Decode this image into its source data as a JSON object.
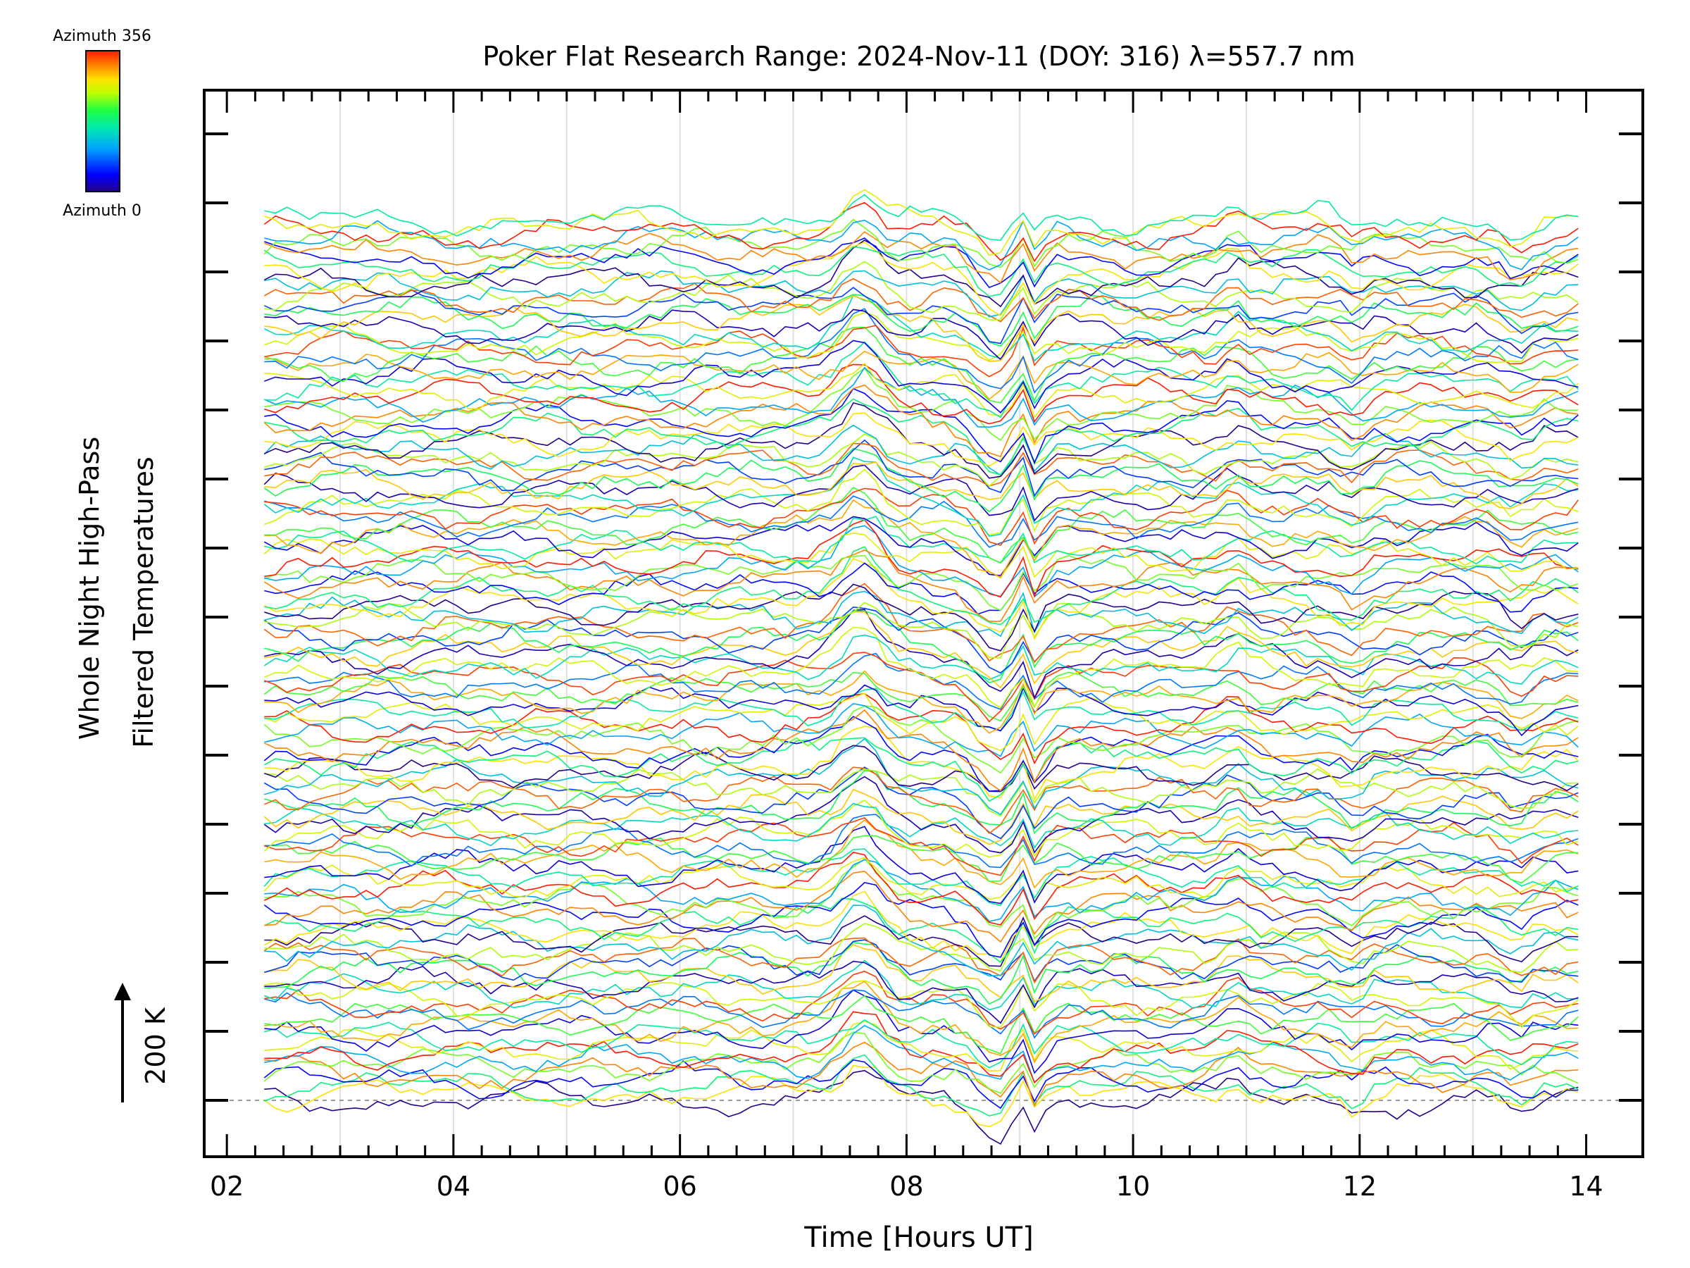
{
  "chart_data": {
    "type": "line",
    "title": "Poker Flat Research Range: 2024-Nov-11 (DOY: 316) λ=557.7 nm",
    "xlabel": "Time [Hours UT]",
    "ylabel_line1": "Whole Night High-Pass",
    "ylabel_line2": "Filtered Temperatures",
    "xlim": [
      1.8,
      14.5
    ],
    "x_ticks": [
      "02",
      "04",
      "06",
      "08",
      "10",
      "12",
      "14"
    ],
    "x_tick_values": [
      2,
      4,
      6,
      8,
      10,
      12,
      14
    ],
    "x_gridlines": [
      3,
      4,
      5,
      6,
      7,
      8,
      9,
      10,
      11,
      12,
      13
    ],
    "time_range": [
      2.33,
      13.95
    ],
    "scale_bar": {
      "label": "200 K",
      "value_K": 200
    },
    "colorbar": {
      "top_label": "Azimuth 356",
      "bottom_label": "Azimuth 0",
      "colors": [
        "#26008c",
        "#0000ff",
        "#00a0ff",
        "#00e8b0",
        "#20ff40",
        "#c0ff00",
        "#ffe000",
        "#ff8000",
        "#ff1a00"
      ]
    },
    "series_count": 130,
    "grid": "vertical-only",
    "baseline": "dashed-gray",
    "features": [
      {
        "x": 7.6,
        "description_amplitude_K": 150
      },
      {
        "x": 8.8,
        "description_amplitude_K": -120
      },
      {
        "x": 9.0,
        "description_amplitude_K": 100
      },
      {
        "x": 9.15,
        "description_amplitude_K": -130
      }
    ]
  }
}
